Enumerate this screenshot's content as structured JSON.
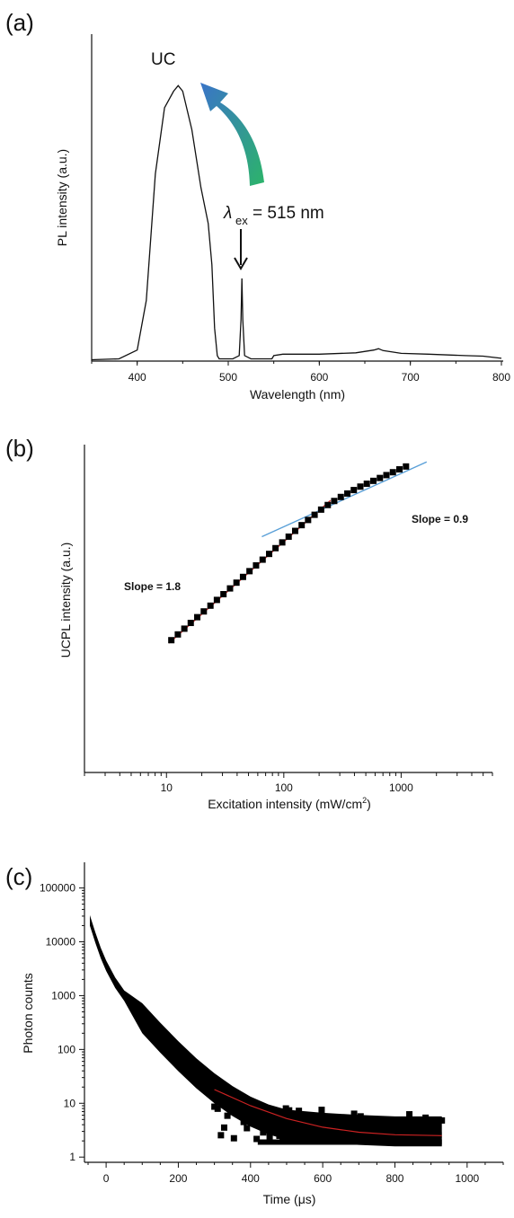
{
  "chart_data": [
    {
      "panel": "(a)",
      "type": "line",
      "xlabel": "Wavelength (nm)",
      "ylabel": "PL intensity (a.u.)",
      "xlim": [
        350,
        800
      ],
      "ylim": [
        0,
        1.05
      ],
      "xticks": [
        400,
        500,
        600,
        700,
        800
      ],
      "annotations": {
        "peak": "UC",
        "lambda": "λ",
        "sub": "ex",
        "excitation": "= 515 nm"
      },
      "arrow_colors": [
        "#3a74c8",
        "#2cb46a"
      ],
      "series": [
        {
          "color": "#111111",
          "x": [
            350,
            380,
            400,
            410,
            420,
            430,
            440,
            445,
            450,
            460,
            470,
            478,
            482,
            485,
            488,
            490,
            505,
            512,
            514,
            515,
            516,
            518,
            525,
            548,
            550,
            560,
            600,
            640,
            660,
            665,
            670,
            690,
            720,
            760,
            780,
            800
          ],
          "y": [
            0.005,
            0.008,
            0.04,
            0.22,
            0.68,
            0.92,
            0.98,
            1.0,
            0.98,
            0.84,
            0.63,
            0.5,
            0.35,
            0.12,
            0.02,
            0.008,
            0.008,
            0.02,
            0.15,
            0.3,
            0.15,
            0.02,
            0.008,
            0.008,
            0.02,
            0.025,
            0.025,
            0.03,
            0.04,
            0.045,
            0.038,
            0.028,
            0.025,
            0.02,
            0.018,
            0.01
          ]
        }
      ]
    },
    {
      "panel": "(b)",
      "type": "scatter",
      "xlabel": "Excitation intensity (mW/cm",
      "xlabel_sup": "2",
      "xlabel_end": ")",
      "ylabel": "UCPL intensity (a.u.)",
      "xscale": "log",
      "xlim": [
        2,
        6000
      ],
      "ylim": [
        -2.3,
        3.4
      ],
      "xticks": [
        10,
        100,
        1000
      ],
      "xtick_labels": [
        "10",
        "100",
        "1000"
      ],
      "annotations": {
        "slope1": "Slope = 1.8",
        "slope2": "Slope = 0.9"
      },
      "points_x": [
        11,
        12.5,
        14.2,
        16.1,
        18.3,
        20.8,
        23.7,
        26.9,
        30.6,
        34.8,
        39.5,
        44.9,
        51,
        58,
        66,
        75,
        85,
        97,
        110,
        125,
        142,
        161,
        183,
        208,
        237,
        269,
        306,
        348,
        395,
        449,
        510,
        580,
        659,
        749,
        851,
        967,
        1100
      ],
      "points_y": [
        0,
        0.1,
        0.2,
        0.3,
        0.4,
        0.5,
        0.6,
        0.7,
        0.8,
        0.9,
        1.0,
        1.1,
        1.2,
        1.3,
        1.4,
        1.5,
        1.6,
        1.7,
        1.8,
        1.9,
        2.0,
        2.09,
        2.18,
        2.27,
        2.35,
        2.42,
        2.49,
        2.55,
        2.61,
        2.67,
        2.72,
        2.77,
        2.82,
        2.87,
        2.92,
        2.97,
        3.02
      ],
      "fit_lines": [
        {
          "name": "Slope = 1.8",
          "color": "#e03030",
          "x": [
            10.5,
            250
          ],
          "y": [
            -0.05,
            2.43
          ]
        },
        {
          "name": "Slope = 0.9",
          "color": "#5aa0d8",
          "x": [
            65,
            1650
          ],
          "y": [
            1.8,
            3.1
          ]
        }
      ]
    },
    {
      "panel": "(c)",
      "type": "scatter",
      "xlabel": "Time (μs)",
      "ylabel": "Photon counts",
      "yscale": "log",
      "xlim": [
        -60,
        1100
      ],
      "ylim": [
        0.8,
        300000
      ],
      "xticks": [
        0,
        200,
        400,
        600,
        800,
        1000
      ],
      "yticks": [
        1,
        10,
        100,
        1000,
        10000,
        100000
      ],
      "ytick_labels": [
        "1",
        "10",
        "100",
        "1000",
        "10000",
        "100000"
      ],
      "decay_curve": {
        "t": [
          -45,
          -30,
          -15,
          0,
          25,
          50,
          100,
          150,
          200,
          250,
          300,
          350,
          400,
          450,
          500,
          600,
          700,
          800,
          930
        ],
        "counts": [
          25000,
          12000,
          6200,
          3600,
          1750,
          1000,
          380,
          165,
          75,
          36,
          19,
          11,
          7,
          5,
          4,
          3.5,
          3.2,
          3.0,
          3.0
        ]
      },
      "noise_floor": {
        "t_start": 420,
        "t_end": 930,
        "lower": 1.9,
        "upper": 6
      },
      "fit": {
        "color": "#cc2222",
        "t": [
          300,
          400,
          500,
          600,
          700,
          800,
          930
        ],
        "counts": [
          18,
          9,
          5.2,
          3.6,
          2.9,
          2.6,
          2.5
        ]
      }
    }
  ]
}
